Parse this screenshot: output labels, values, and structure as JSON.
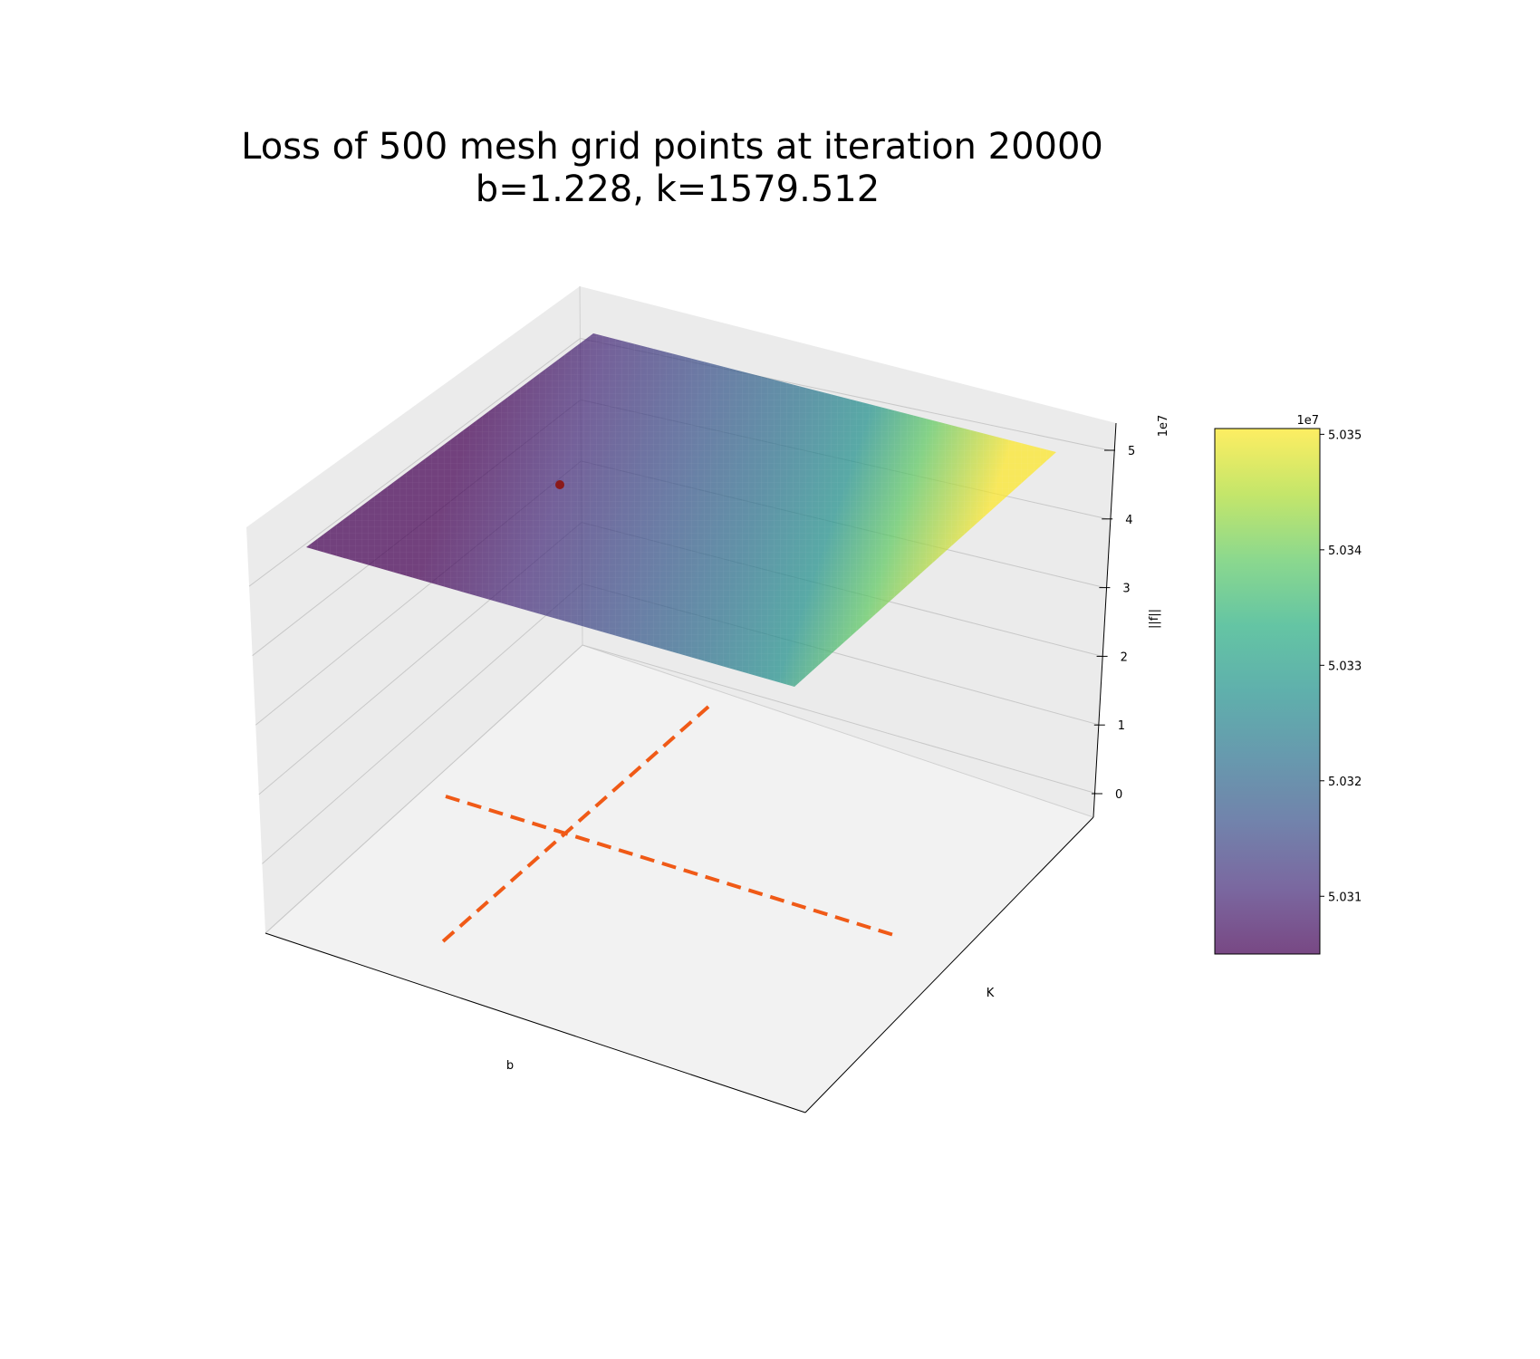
{
  "chart_data": {
    "type": "surface3d",
    "title": "Loss of 500 mesh grid points at iteration 20000",
    "subtitle": "b=1.228, k=1579.512",
    "xlabel": "b",
    "ylabel": "K",
    "zlabel": "||f||",
    "z_scale_label": "1e7",
    "z_ticks": [
      "0",
      "1",
      "2",
      "3",
      "4",
      "5"
    ],
    "z_tick_values": [
      0,
      1,
      2,
      3,
      4,
      5
    ],
    "surface": {
      "colormap": "viridis",
      "alpha": 0.7,
      "z_min": 5.0305,
      "z_max": 5.035,
      "approx_level": 5.03
    },
    "current_point": {
      "color": "#8b1a1a"
    },
    "reference_lines": {
      "color": "#f05a17",
      "style": "dashed"
    },
    "colorbar": {
      "scale_label": "1e7",
      "ticks": [
        "5.031",
        "5.032",
        "5.033",
        "5.034",
        "5.035"
      ],
      "tick_values": [
        5.031,
        5.032,
        5.033,
        5.034,
        5.035
      ],
      "min": 5.0305,
      "max": 5.03505
    }
  }
}
